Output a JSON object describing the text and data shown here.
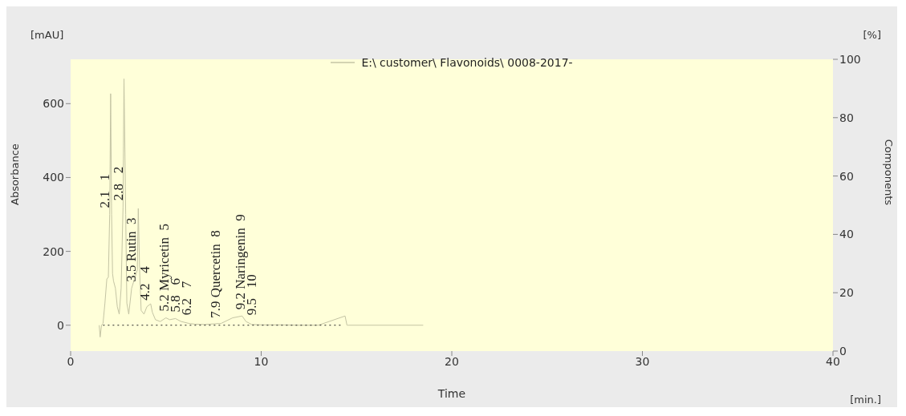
{
  "chart_data": {
    "type": "line",
    "xlabel": "Time",
    "ylabel": "Absorbance",
    "y2label": "Components",
    "xlim": [
      0,
      40
    ],
    "xticks": [
      0,
      10,
      20,
      30,
      40
    ],
    "ylim": [
      -70,
      720
    ],
    "yticks": [
      0,
      200,
      400,
      600
    ],
    "y2lim": [
      0,
      100
    ],
    "y2ticks": [
      0,
      20,
      40,
      60,
      80,
      100
    ],
    "legend": "top",
    "grid": false,
    "marker": "none",
    "series": [
      {
        "name": "E:\\ customer\\ Flavonoids\\ 0008-2017-",
        "color": "#c4c4a4",
        "line_style": "solid",
        "x": [
          1.5,
          1.55,
          1.62,
          1.7,
          1.8,
          1.9,
          1.98,
          2.05,
          2.1,
          2.15,
          2.2,
          2.25,
          2.35,
          2.45,
          2.55,
          2.65,
          2.75,
          2.8,
          2.89,
          2.95,
          3.05,
          3.2,
          3.5,
          3.55,
          3.62,
          3.7,
          3.85,
          4.0,
          4.2,
          4.29,
          4.45,
          4.7,
          5.0,
          5.2,
          5.5,
          5.8,
          6.2,
          6.5,
          7.0,
          7.9,
          8.5,
          9.0,
          9.2,
          9.5,
          10,
          11,
          12,
          13,
          14.4,
          14.5,
          14.55,
          18.5
        ],
        "values": [
          0,
          -32,
          0,
          5,
          60,
          125,
          130,
          300,
          627,
          300,
          140,
          120,
          100,
          50,
          30,
          100,
          320,
          667,
          300,
          60,
          30,
          100,
          150,
          316,
          150,
          40,
          30,
          50,
          58,
          35,
          15,
          10,
          20,
          15,
          18,
          10,
          5,
          3,
          2,
          5,
          20,
          25,
          10,
          2,
          1,
          1,
          0,
          0,
          25,
          0,
          0,
          0
        ]
      },
      {
        "type": "line",
        "color": "#222222",
        "line_style": "dotted",
        "x": [
          1.7,
          14.2
        ],
        "values": [
          0,
          0
        ]
      }
    ],
    "annotations": [
      "[mAU]",
      "[%]",
      "[min.]",
      {
        "text": "2.1   1",
        "x": 2.1,
        "y": 300
      },
      {
        "text": "2.8   2",
        "x": 2.8,
        "y": 320
      },
      {
        "text": "3.5 Rutin  3",
        "x": 3.5,
        "y": 100
      },
      {
        "text": "4.2   4",
        "x": 4.2,
        "y": 50
      },
      {
        "text": "5.2 Myricetin  5",
        "x": 5.2,
        "y": 20
      },
      {
        "text": "5.8   6",
        "x": 5.8,
        "y": 18
      },
      {
        "text": "6.2   7",
        "x": 6.2,
        "y": 10
      },
      {
        "text": "7.9 Quercetin  8",
        "x": 7.9,
        "y": 2
      },
      {
        "text": "9.2 Naringenin  9",
        "x": 9.2,
        "y": 25
      },
      {
        "text": "9.5   10",
        "x": 9.5,
        "y": 10
      }
    ]
  }
}
